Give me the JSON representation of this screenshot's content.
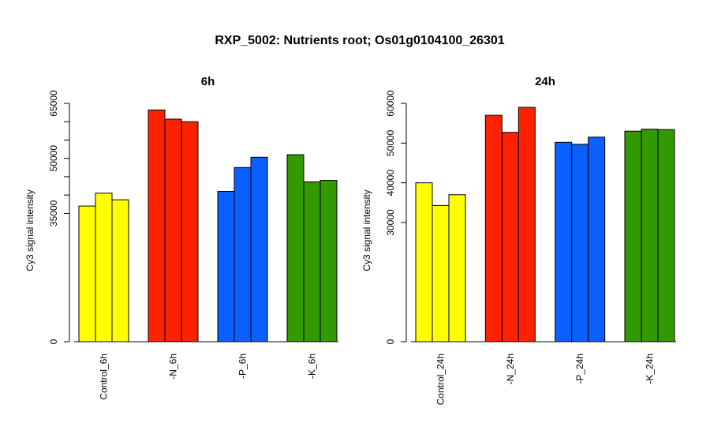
{
  "title": "RXP_5002: Nutrients root; Os01g0104100_26301",
  "chart_data": [
    {
      "type": "bar",
      "title": "6h",
      "ylabel": "Cy3 signal intensity",
      "ylim": [
        0,
        65000
      ],
      "y_ticks": [
        0,
        35000,
        50000,
        65000
      ],
      "y_tick_labels": [
        "0",
        "35000",
        "50000",
        "65000"
      ],
      "y_minor_ticks": [
        40000,
        45000,
        55000,
        60000
      ],
      "categories": [
        "Control_6h",
        "-N_6h",
        "-P_6h",
        "-K_6h"
      ],
      "colors": [
        "#ffff00",
        "#ff2200",
        "#0a5fff",
        "#339900"
      ],
      "values": [
        [
          37000,
          40500,
          38700
        ],
        [
          63200,
          60700,
          60000
        ],
        [
          41000,
          47500,
          50300
        ],
        [
          51000,
          43600,
          44000
        ]
      ]
    },
    {
      "type": "bar",
      "title": "24h",
      "ylabel": "Cy3 signal intensity",
      "ylim": [
        0,
        60000
      ],
      "y_ticks": [
        0,
        30000,
        40000,
        50000,
        60000
      ],
      "y_tick_labels": [
        "0",
        "30000",
        "40000",
        "50000",
        "60000"
      ],
      "categories": [
        "Control_24h",
        "-N_24h",
        "-P_24h",
        "-K_24h"
      ],
      "colors": [
        "#ffff00",
        "#ff2200",
        "#0a5fff",
        "#339900"
      ],
      "values": [
        [
          40000,
          34300,
          37000
        ],
        [
          57000,
          52700,
          59000
        ],
        [
          50200,
          49700,
          51500
        ],
        [
          53000,
          53500,
          53400
        ]
      ]
    }
  ]
}
